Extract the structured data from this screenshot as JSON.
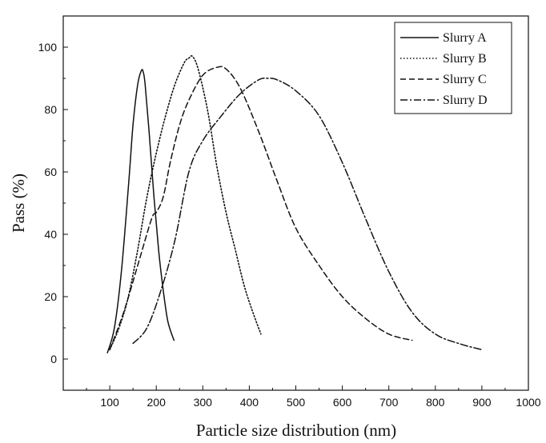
{
  "chart_data": {
    "type": "line",
    "title": "",
    "xlabel": "Particle size distribution (nm)",
    "ylabel": "Pass (%)",
    "xlim": [
      0,
      1000
    ],
    "ylim": [
      -10,
      110
    ],
    "xticks": [
      "100",
      "200",
      "300",
      "400",
      "500",
      "600",
      "700",
      "800",
      "900",
      "1000"
    ],
    "yticks": [
      "0",
      "20",
      "40",
      "60",
      "80",
      "100"
    ],
    "grid": false,
    "legend_position": "top-right",
    "series": [
      {
        "name": "Slurry A",
        "style": "solid",
        "x": [
          95,
          110,
          125,
          140,
          150,
          160,
          168,
          172,
          176,
          185,
          195,
          205,
          215,
          225,
          238
        ],
        "y": [
          2,
          10,
          28,
          55,
          75,
          88,
          92.5,
          92,
          88,
          72,
          52,
          35,
          22,
          12,
          6
        ]
      },
      {
        "name": "Slurry B",
        "style": "dotted",
        "x": [
          100,
          120,
          140,
          160,
          180,
          200,
          220,
          240,
          260,
          270,
          278,
          290,
          310,
          330,
          350,
          370,
          390,
          410,
          425
        ],
        "y": [
          3,
          10,
          20,
          35,
          52,
          66,
          78,
          88,
          95,
          96.5,
          97,
          93,
          80,
          62,
          47,
          35,
          23,
          14,
          8
        ]
      },
      {
        "name": "Slurry C",
        "style": "dashed",
        "x": [
          100,
          130,
          160,
          190,
          200,
          215,
          230,
          250,
          270,
          300,
          330,
          350,
          380,
          420,
          460,
          500,
          550,
          600,
          650,
          700,
          750
        ],
        "y": [
          3,
          15,
          30,
          45,
          47,
          52,
          63,
          75,
          83,
          91,
          93.5,
          93,
          87,
          73,
          57,
          42,
          30,
          20,
          13,
          8,
          6
        ]
      },
      {
        "name": "Slurry D",
        "style": "dash-dot",
        "x": [
          150,
          180,
          210,
          240,
          270,
          300,
          340,
          380,
          420,
          440,
          460,
          500,
          550,
          600,
          650,
          700,
          750,
          800,
          850,
          900
        ],
        "y": [
          5,
          10,
          22,
          38,
          60,
          70,
          78,
          85,
          89.5,
          90,
          89.5,
          86,
          78,
          63,
          45,
          28,
          15,
          8,
          5,
          3
        ]
      }
    ]
  }
}
